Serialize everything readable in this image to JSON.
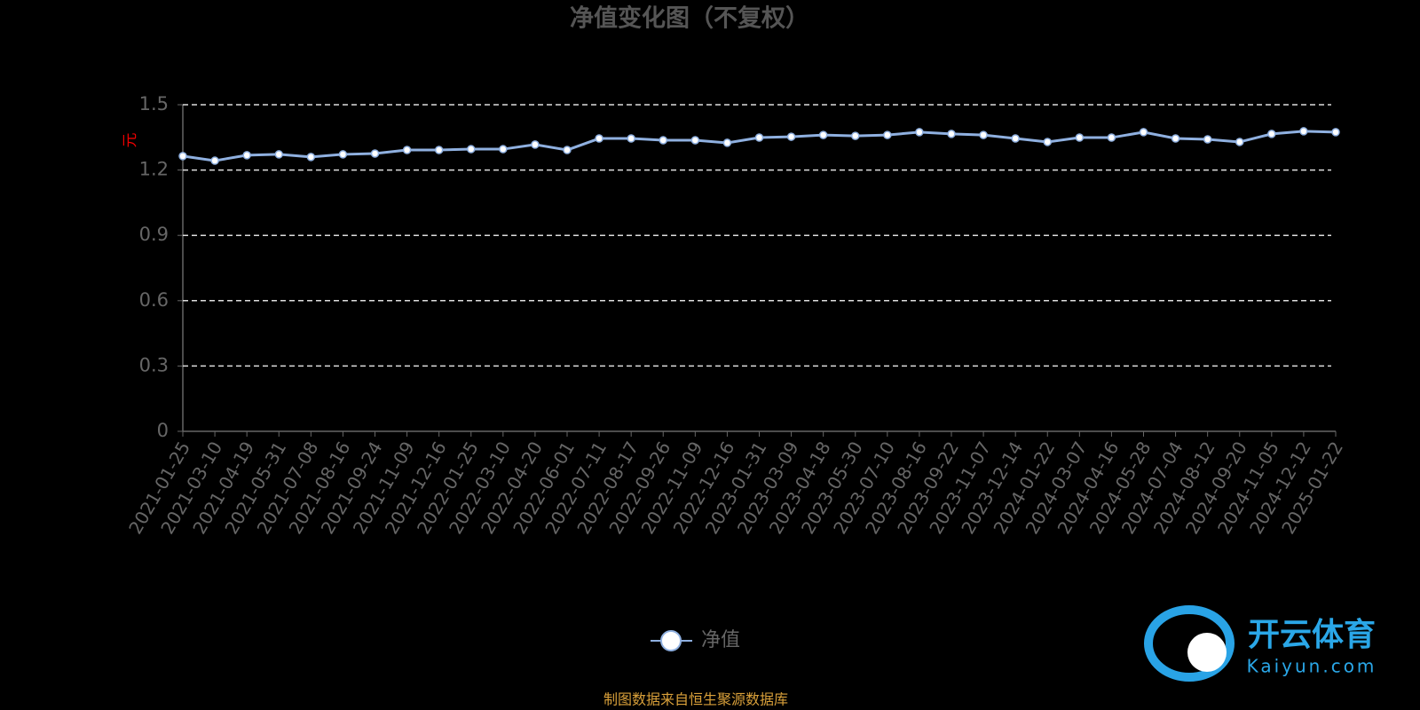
{
  "chart_data": {
    "type": "line",
    "title": "净值变化图（不复权）",
    "y_label": "元",
    "x": [
      "2021-01-25",
      "2021-03-10",
      "2021-04-19",
      "2021-05-31",
      "2021-07-08",
      "2021-08-16",
      "2021-09-24",
      "2021-11-09",
      "2021-12-16",
      "2022-01-25",
      "2022-03-10",
      "2022-04-20",
      "2022-06-01",
      "2022-07-11",
      "2022-08-17",
      "2022-09-26",
      "2022-11-09",
      "2022-12-16",
      "2023-01-31",
      "2023-03-09",
      "2023-04-18",
      "2023-05-30",
      "2023-07-10",
      "2023-08-16",
      "2023-09-22",
      "2023-11-07",
      "2023-12-14",
      "2024-01-22",
      "2024-03-07",
      "2024-04-16",
      "2024-05-28",
      "2024-07-04",
      "2024-08-12",
      "2024-09-20",
      "2024-11-05",
      "2024-12-12",
      "2025-01-22"
    ],
    "series": [
      {
        "name": "净值",
        "color": "#8fb0e0",
        "values": [
          1.264,
          1.243,
          1.268,
          1.272,
          1.26,
          1.272,
          1.276,
          1.292,
          1.292,
          1.296,
          1.296,
          1.317,
          1.292,
          1.345,
          1.345,
          1.337,
          1.337,
          1.325,
          1.349,
          1.353,
          1.361,
          1.357,
          1.361,
          1.374,
          1.366,
          1.361,
          1.345,
          1.329,
          1.349,
          1.349,
          1.374,
          1.345,
          1.341,
          1.329,
          1.366,
          1.378,
          1.374
        ]
      }
    ],
    "ylim": [
      0,
      1.5
    ],
    "yticks": [
      0,
      0.3,
      0.6,
      0.9,
      1.2,
      1.5
    ],
    "grid": true,
    "source": "制图数据来自恒生聚源数据库"
  },
  "watermark": {
    "brand": "开云体育",
    "url": "Kaiyun.com"
  }
}
